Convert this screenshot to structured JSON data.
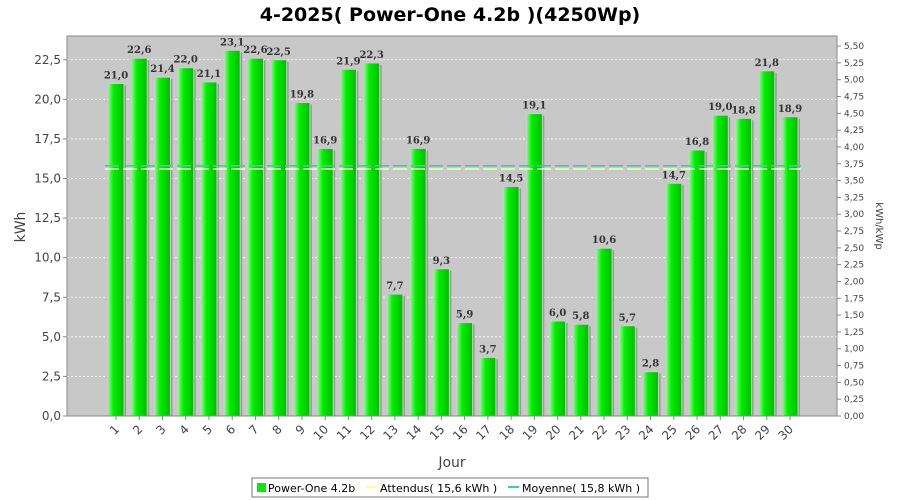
{
  "chart_data": {
    "type": "bar",
    "title": "4-2025( Power-One 4.2b )(4250Wp)",
    "xlabel": "Jour",
    "ylabel": "kWh",
    "y2label": "kWh/kWp",
    "ylim": [
      0,
      24
    ],
    "y2lim": [
      0,
      5.65
    ],
    "yticks": [
      "0,0",
      "2,5",
      "5,0",
      "7,5",
      "10,0",
      "12,5",
      "15,0",
      "17,5",
      "20,0",
      "22,5"
    ],
    "y2ticks": [
      "0,00",
      "0,25",
      "0,50",
      "0,75",
      "1,00",
      "1,25",
      "1,50",
      "1,75",
      "2,00",
      "2,25",
      "2,50",
      "2,75",
      "3,00",
      "3,25",
      "3,50",
      "3,75",
      "4,00",
      "4,25",
      "4,50",
      "4,75",
      "5,00",
      "5,25",
      "5,50"
    ],
    "categories": [
      "1",
      "2",
      "3",
      "4",
      "5",
      "6",
      "7",
      "8",
      "9",
      "10",
      "11",
      "12",
      "13",
      "14",
      "15",
      "16",
      "17",
      "18",
      "19",
      "20",
      "21",
      "22",
      "23",
      "24",
      "25",
      "26",
      "27",
      "28",
      "29",
      "30"
    ],
    "series": [
      {
        "name": "Power-One 4.2b",
        "color": "#00ee00",
        "values": [
          21.0,
          22.6,
          21.4,
          22.0,
          21.1,
          23.1,
          22.6,
          22.5,
          19.8,
          16.9,
          21.9,
          22.3,
          7.7,
          16.9,
          9.3,
          5.9,
          3.7,
          14.5,
          19.1,
          6.0,
          5.8,
          10.6,
          5.7,
          2.8,
          14.7,
          16.8,
          19.0,
          18.8,
          21.8,
          18.9
        ],
        "labels": [
          "21,0",
          "22,6",
          "21,4",
          "22,0",
          "21,1",
          "23,1",
          "22,6",
          "22,5",
          "19,8",
          "16,9",
          "21,9",
          "22,3",
          "7,7",
          "16,9",
          "9,3",
          "5,9",
          "3,7",
          "14,5",
          "19,1",
          "6,0",
          "5,8",
          "10,6",
          "5,7",
          "2,8",
          "14,7",
          "16,8",
          "19,0",
          "18,8",
          "21,8",
          "18,9"
        ]
      }
    ],
    "reference_lines": [
      {
        "name": "Attendus( 15,6 kWh )",
        "value": 15.6,
        "color": "#ffff99"
      },
      {
        "name": "Moyenne( 15,8 kWh )",
        "value": 15.8,
        "color": "#33cccc"
      }
    ],
    "grid": true,
    "legend": "bottom",
    "plot_background": "#c8c8c8"
  }
}
